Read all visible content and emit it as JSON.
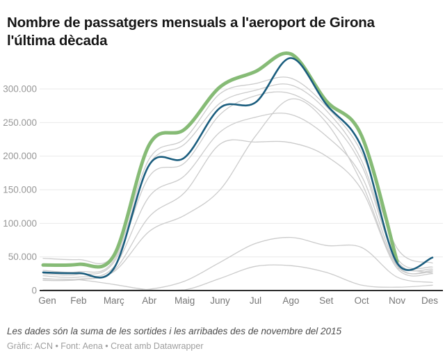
{
  "title_lines": [
    "Nombre de passatgers mensuals a l'aeroport de Girona",
    "l'última dècada"
  ],
  "chart_data": {
    "type": "line",
    "title": "Nombre de passatgers mensuals a l'aeroport de Girona l'última dècada",
    "x_categories": [
      "Gen",
      "Feb",
      "Març",
      "Abr",
      "Maig",
      "Juny",
      "Jul",
      "Ago",
      "Set",
      "Oct",
      "Nov",
      "Des"
    ],
    "y_ticks": [
      {
        "value": 0,
        "label": "0"
      },
      {
        "value": 50000,
        "label": "50.000"
      },
      {
        "value": 100000,
        "label": "100.000"
      },
      {
        "value": 150000,
        "label": "150.000"
      },
      {
        "value": 200000,
        "label": "200.000"
      },
      {
        "value": 250000,
        "label": "250.000"
      },
      {
        "value": 300000,
        "label": "300.000"
      }
    ],
    "ylim": [
      0,
      360000
    ],
    "grid": true,
    "legend": "none",
    "colors": {
      "highlight_green": "#86bb76",
      "highlight_blue": "#1a5d7e",
      "gray_year": "#cbcbcb",
      "gridline": "#e9e9e9",
      "axis": "#2d2d2d"
    },
    "series": [
      {
        "name": "any-gris-1",
        "color": "#cbcbcb",
        "width": 1.3,
        "values": [
          48000,
          46000,
          53000,
          196000,
          226000,
          293000,
          308000,
          316000,
          274000,
          205000,
          63000,
          41000
        ]
      },
      {
        "name": "any-gris-2",
        "color": "#cbcbcb",
        "width": 1.3,
        "values": [
          30000,
          28000,
          45000,
          188000,
          218000,
          279000,
          298000,
          306000,
          268000,
          193000,
          48000,
          35000
        ]
      },
      {
        "name": "any-gris-3",
        "color": "#cbcbcb",
        "width": 1.3,
        "values": [
          25000,
          24000,
          42000,
          170000,
          190000,
          262000,
          290000,
          293000,
          258000,
          186000,
          44000,
          32000
        ]
      },
      {
        "name": "any-gris-4",
        "color": "#cbcbcb",
        "width": 1.3,
        "values": [
          22000,
          20000,
          35000,
          140000,
          171000,
          236000,
          258000,
          262000,
          230000,
          170000,
          38000,
          28000
        ]
      },
      {
        "name": "any-gris-5",
        "color": "#cbcbcb",
        "width": 1.3,
        "values": [
          18000,
          17000,
          30000,
          110000,
          146000,
          218000,
          221000,
          220000,
          200000,
          150000,
          33000,
          25000
        ]
      },
      {
        "name": "any-gris-6",
        "color": "#cbcbcb",
        "width": 1.3,
        "values": [
          15000,
          16000,
          28000,
          88000,
          112000,
          150000,
          230000,
          285000,
          250000,
          160000,
          36000,
          30000
        ]
      },
      {
        "name": "any-gris-baix-1",
        "color": "#cbcbcb",
        "width": 1.3,
        "values": [
          1000,
          1000,
          1000,
          2000,
          14000,
          42000,
          70000,
          79000,
          67000,
          64000,
          20000,
          12000
        ]
      },
      {
        "name": "any-gris-baix-2",
        "color": "#cbcbcb",
        "width": 1.3,
        "values": [
          17000,
          16000,
          9000,
          1000,
          1000,
          18000,
          36000,
          37000,
          27000,
          8000,
          5000,
          8000
        ]
      },
      {
        "name": "any-gris-parcial",
        "color": "#cbcbcb",
        "width": 1.3,
        "values": [
          null,
          null,
          null,
          null,
          null,
          null,
          null,
          null,
          null,
          null,
          33000,
          26000
        ]
      },
      {
        "name": "destacat-verd",
        "color": "#86bb76",
        "width": 5,
        "values": [
          38000,
          39000,
          52000,
          217000,
          240000,
          303000,
          326000,
          352000,
          282000,
          230000,
          43000,
          null
        ]
      },
      {
        "name": "destacat-blau",
        "color": "#1a5d7e",
        "width": 2.6,
        "values": [
          27000,
          26000,
          33000,
          187000,
          198000,
          272000,
          280000,
          346000,
          277000,
          213000,
          41000,
          49000
        ]
      }
    ]
  },
  "footer": {
    "note": "Les dades són la suma de les sortides i les arribades des de novembre del 2015",
    "credit": "Gràfic: ACN • Font: Aena • Creat amb Datawrapper"
  }
}
